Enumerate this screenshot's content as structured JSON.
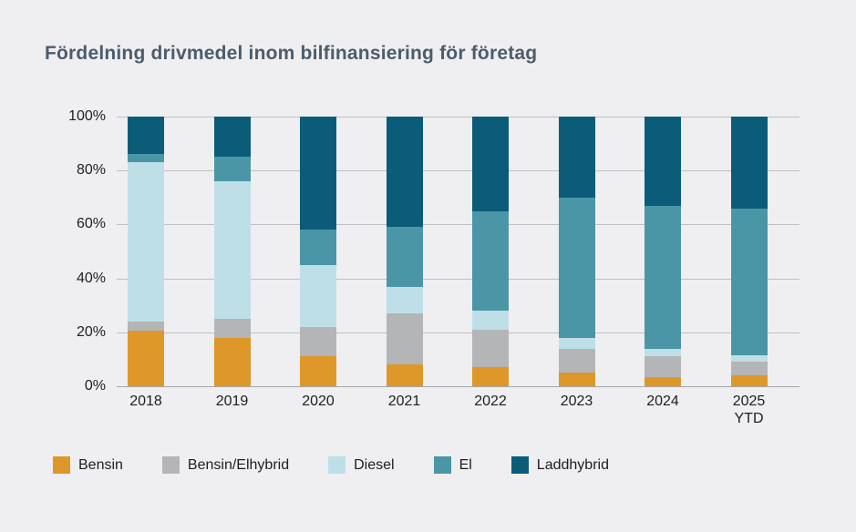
{
  "page": {
    "background_color": "#EFEFF1"
  },
  "header": {
    "title": "Fördelning drivmedel inom bilfinansiering för företag",
    "title_color": "#4C5C6C"
  },
  "chart_data": {
    "type": "bar",
    "variant": "stacked-100-percent",
    "title": "Fördelning drivmedel inom bilfinansiering för företag",
    "xlabel": "",
    "ylabel": "",
    "ylim": [
      0,
      100
    ],
    "grid": true,
    "gridline_color": "#BFC1C3",
    "legend_position": "bottom",
    "y_ticks": [
      {
        "label": "0%",
        "value": 0
      },
      {
        "label": "20%",
        "value": 20
      },
      {
        "label": "40%",
        "value": 40
      },
      {
        "label": "60%",
        "value": 60
      },
      {
        "label": "80%",
        "value": 80
      },
      {
        "label": "100%",
        "value": 100
      }
    ],
    "categories": [
      {
        "label": "2018",
        "sublabel": ""
      },
      {
        "label": "2019",
        "sublabel": ""
      },
      {
        "label": "2020",
        "sublabel": ""
      },
      {
        "label": "2021",
        "sublabel": ""
      },
      {
        "label": "2022",
        "sublabel": ""
      },
      {
        "label": "2023",
        "sublabel": ""
      },
      {
        "label": "2024",
        "sublabel": ""
      },
      {
        "label": "2025",
        "sublabel": "YTD"
      }
    ],
    "series": [
      {
        "name": "Bensin",
        "color": "#DE982A",
        "values": [
          20.5,
          18,
          11,
          8,
          7,
          5,
          3.5,
          4
        ]
      },
      {
        "name": "Bensin/Elhybrid",
        "color": "#B4B5B6",
        "values": [
          3.5,
          7,
          11,
          19,
          14,
          9,
          7.5,
          5
        ]
      },
      {
        "name": "Diesel",
        "color": "#BFDFE8",
        "values": [
          59,
          51,
          23,
          10,
          7,
          4,
          3,
          2.5
        ]
      },
      {
        "name": "El",
        "color": "#4A96A6",
        "values": [
          3,
          9,
          13,
          22,
          37,
          52,
          53,
          54.5
        ]
      },
      {
        "name": "Laddhybrid",
        "color": "#0A5C79",
        "values": [
          14,
          15,
          42,
          41,
          35,
          30,
          33,
          34
        ]
      }
    ]
  }
}
